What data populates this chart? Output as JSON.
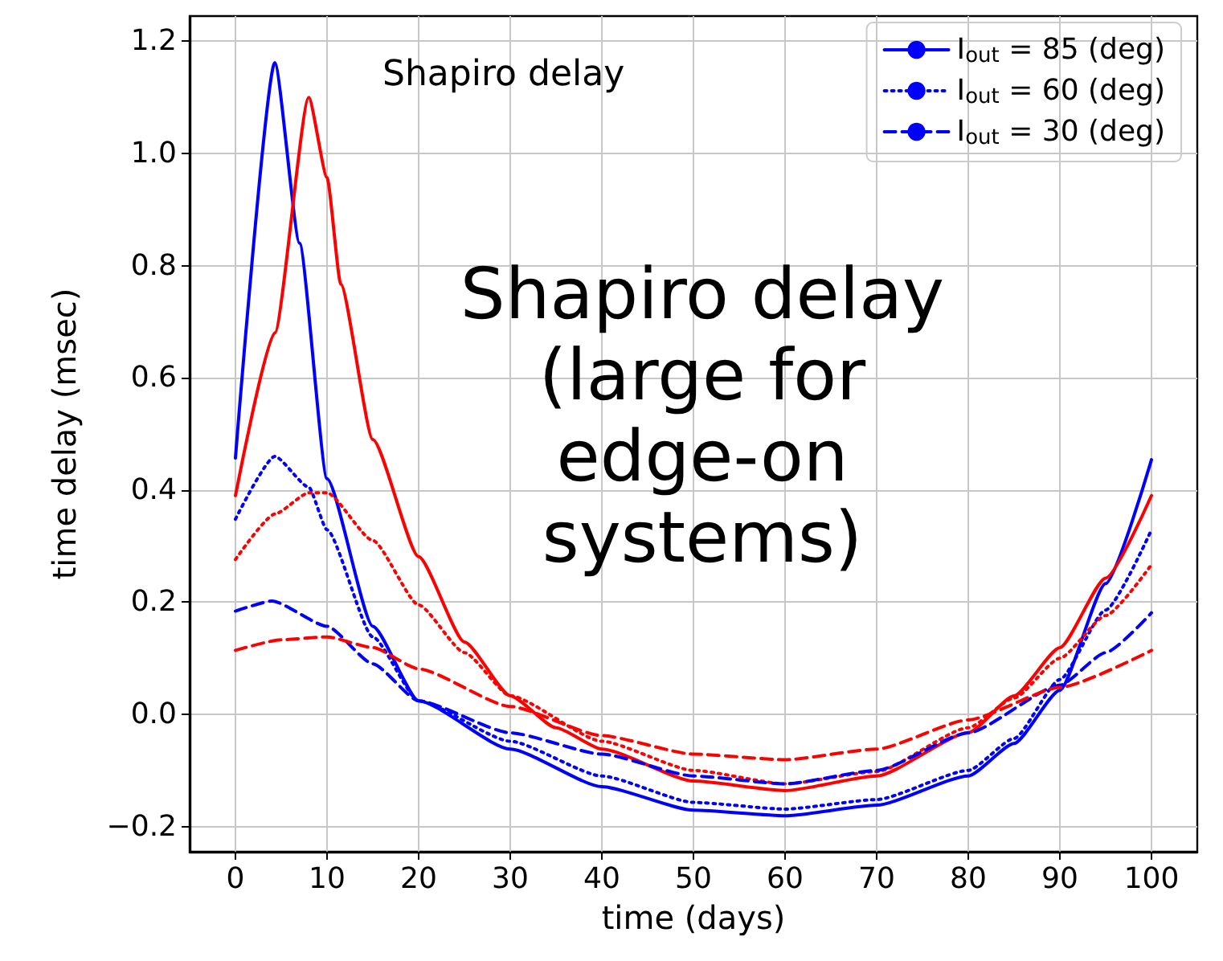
{
  "chart_data": {
    "type": "line",
    "xlabel": "time (days)",
    "ylabel": "time delay (msec)",
    "xlim": [
      -5,
      105
    ],
    "xticks": [
      0,
      10,
      20,
      30,
      40,
      50,
      60,
      70,
      80,
      90,
      100
    ],
    "ylim": [
      -0.245,
      1.245
    ],
    "yticks": [
      {
        "value": -0.2,
        "label": "−0.2"
      },
      {
        "value": 0,
        "label": "0.0"
      },
      0.2,
      0.4,
      0.6,
      0.8,
      {
        "value": 1,
        "label": "1.0"
      },
      1.2
    ],
    "grid": true,
    "legend": "top right",
    "marker": "none",
    "annotations": [
      "Shapiro delay",
      "Shapiro delay\n(large for\nedge-on\nsystems)"
    ],
    "series": [
      {
        "name": "I$_{out}$ = 85 (deg)",
        "color": "#0000ff",
        "line_style": "solid",
        "x": [
          0,
          4.3,
          7,
          10,
          15,
          20,
          30,
          40,
          50,
          60,
          70,
          80,
          85,
          90,
          95,
          100
        ],
        "values": [
          0.457,
          1.162,
          0.84,
          0.42,
          0.157,
          0.024,
          -0.062,
          -0.129,
          -0.171,
          -0.181,
          -0.162,
          -0.11,
          -0.052,
          0.043,
          0.233,
          0.454
        ]
      },
      {
        "color": "#ff0000",
        "line_style": "solid",
        "x": [
          0,
          4.3,
          8,
          10,
          11.5,
          15,
          20,
          25,
          30,
          35,
          40,
          50,
          60,
          70,
          80,
          85,
          90,
          95,
          100
        ],
        "values": [
          0.39,
          0.68,
          1.1,
          0.957,
          0.767,
          0.49,
          0.281,
          0.129,
          0.033,
          -0.024,
          -0.062,
          -0.119,
          -0.136,
          -0.11,
          -0.033,
          0.033,
          0.119,
          0.243,
          0.39
        ]
      },
      {
        "name": "I$_{out}$ = 60 (deg)",
        "color": "#0000ff",
        "line_style": "dotted",
        "x": [
          0,
          4.3,
          8,
          10,
          15,
          20,
          30,
          40,
          50,
          60,
          70,
          80,
          85,
          90,
          95,
          100
        ],
        "values": [
          0.348,
          0.46,
          0.405,
          0.329,
          0.138,
          0.024,
          -0.048,
          -0.11,
          -0.157,
          -0.169,
          -0.152,
          -0.1,
          -0.043,
          0.062,
          0.186,
          0.329
        ]
      },
      {
        "color": "#ff0000",
        "line_style": "dotted",
        "x": [
          0,
          4.3,
          8,
          10,
          15,
          20,
          25,
          30,
          40,
          50,
          60,
          70,
          80,
          85,
          90,
          95,
          100
        ],
        "values": [
          0.276,
          0.357,
          0.395,
          0.395,
          0.31,
          0.195,
          0.11,
          0.033,
          -0.048,
          -0.1,
          -0.124,
          -0.102,
          -0.024,
          0.029,
          0.1,
          0.176,
          0.267
        ]
      },
      {
        "name": "I$_{out}$ = 30 (deg)",
        "color": "#0000ff",
        "line_style": "dashed",
        "x": [
          0,
          4,
          10,
          15,
          20,
          30,
          40,
          50,
          60,
          70,
          80,
          90,
          95,
          100
        ],
        "values": [
          0.184,
          0.202,
          0.157,
          0.09,
          0.024,
          -0.033,
          -0.071,
          -0.11,
          -0.124,
          -0.1,
          -0.033,
          0.052,
          0.11,
          0.181
        ]
      },
      {
        "color": "#ff0000",
        "line_style": "dashed",
        "x": [
          0,
          5,
          10,
          15,
          20,
          30,
          40,
          50,
          60,
          70,
          80,
          90,
          100
        ],
        "values": [
          0.114,
          0.133,
          0.138,
          0.119,
          0.081,
          0.014,
          -0.038,
          -0.071,
          -0.081,
          -0.062,
          -0.01,
          0.048,
          0.114
        ]
      }
    ]
  }
}
